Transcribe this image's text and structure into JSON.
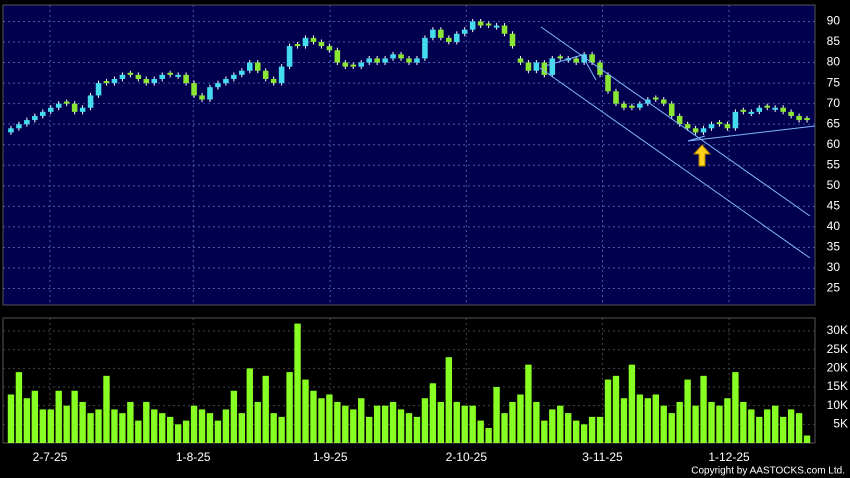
{
  "chart_data": {
    "type": "candlestick",
    "up_color": "#44dcee",
    "down_color": "#8ae632",
    "volume_color": "#88ff22",
    "grid": true,
    "xlim": [
      -1,
      101
    ],
    "xticks": [
      {
        "value": 4.9,
        "label": "2-7-25"
      },
      {
        "value": 22.9,
        "label": "1-8-25"
      },
      {
        "value": 40.1,
        "label": "1-9-25"
      },
      {
        "value": 57.2,
        "label": "2-10-25"
      },
      {
        "value": 74.3,
        "label": "3-11-25"
      },
      {
        "value": 90.2,
        "label": "1-12-25"
      }
    ],
    "ylim": [
      21,
      94
    ],
    "yticks": [
      25,
      30,
      35,
      40,
      45,
      50,
      55,
      60,
      65,
      70,
      75,
      80,
      85,
      90
    ],
    "y2lim": [
      0,
      33500
    ],
    "y2ticks": [
      {
        "value": 5000,
        "label": "5K"
      },
      {
        "value": 10000,
        "label": "10K"
      },
      {
        "value": 15000,
        "label": "15K"
      },
      {
        "value": 20000,
        "label": "20K"
      },
      {
        "value": 25000,
        "label": "25K"
      },
      {
        "value": 30000,
        "label": "30K"
      }
    ],
    "ohlc": [
      [
        63,
        64.6,
        62.4,
        64
      ],
      [
        64,
        65.6,
        63.4,
        65
      ],
      [
        65,
        66.6,
        64.4,
        66
      ],
      [
        66,
        67.6,
        65.4,
        67
      ],
      [
        67,
        68.6,
        66.4,
        68
      ],
      [
        68,
        69.6,
        67.4,
        69
      ],
      [
        69,
        70.6,
        68.4,
        70
      ],
      [
        70.5,
        71,
        69.4,
        70
      ],
      [
        70,
        70.6,
        67.4,
        68
      ],
      [
        68,
        69.6,
        67.4,
        69
      ],
      [
        69,
        72.6,
        68.4,
        72
      ],
      [
        72,
        75.6,
        71.4,
        75
      ],
      [
        75.5,
        76,
        74.4,
        75
      ],
      [
        75,
        76.6,
        74.4,
        76
      ],
      [
        76,
        77.6,
        75.4,
        77
      ],
      [
        77.5,
        78,
        76.4,
        77
      ],
      [
        77,
        77.6,
        75.4,
        76
      ],
      [
        76,
        76.6,
        74.4,
        75
      ],
      [
        75,
        76.6,
        74.4,
        76
      ],
      [
        76,
        77.6,
        75.4,
        77
      ],
      [
        77.5,
        78,
        76.4,
        77
      ],
      [
        76.5,
        77.6,
        76,
        77
      ],
      [
        77,
        77.6,
        74.4,
        75
      ],
      [
        75,
        75.6,
        71.4,
        72
      ],
      [
        72,
        72.6,
        70.4,
        71
      ],
      [
        71,
        74.6,
        70.4,
        74
      ],
      [
        74,
        75.6,
        73.4,
        75
      ],
      [
        75,
        76.6,
        74.4,
        76
      ],
      [
        76,
        77.6,
        75.4,
        77
      ],
      [
        77,
        78.6,
        76.4,
        78
      ],
      [
        78,
        80.6,
        77.4,
        80
      ],
      [
        80,
        80.6,
        77.4,
        78
      ],
      [
        78,
        78.6,
        75.4,
        76
      ],
      [
        76,
        76.6,
        74.4,
        75
      ],
      [
        75,
        79.6,
        74.4,
        79
      ],
      [
        79,
        84.6,
        78.4,
        84
      ],
      [
        84.5,
        85,
        83.4,
        84
      ],
      [
        84,
        86.6,
        83.4,
        86
      ],
      [
        86,
        86.6,
        84.4,
        85
      ],
      [
        85,
        85.6,
        83.4,
        84
      ],
      [
        84,
        84.6,
        82.4,
        83
      ],
      [
        83,
        83.6,
        79.4,
        80
      ],
      [
        80,
        80.6,
        78.4,
        79
      ],
      [
        79.5,
        80,
        78.4,
        79
      ],
      [
        79,
        80.6,
        78.4,
        80
      ],
      [
        80,
        81.6,
        79.4,
        81
      ],
      [
        81,
        81.6,
        79.4,
        80
      ],
      [
        80,
        81.6,
        79.4,
        81
      ],
      [
        81,
        82.6,
        80.4,
        82
      ],
      [
        82,
        82.6,
        80.4,
        81
      ],
      [
        81,
        81.6,
        79.4,
        80
      ],
      [
        80,
        81.6,
        79.4,
        81
      ],
      [
        81,
        86.6,
        80.4,
        86
      ],
      [
        86,
        88.6,
        85.4,
        88
      ],
      [
        88,
        88.6,
        85.4,
        86
      ],
      [
        86,
        86.6,
        84.4,
        85
      ],
      [
        85,
        87.6,
        84.4,
        87
      ],
      [
        87,
        88.6,
        86.4,
        88
      ],
      [
        88,
        90.6,
        87.4,
        90
      ],
      [
        90,
        90.6,
        88.4,
        89
      ],
      [
        89.5,
        90,
        88.4,
        89
      ],
      [
        88.5,
        89.6,
        88,
        89
      ],
      [
        89,
        89.6,
        86.4,
        87
      ],
      [
        87,
        87.6,
        83.4,
        84
      ],
      [
        81,
        81.6,
        79.4,
        80
      ],
      [
        80,
        80.6,
        77.4,
        78
      ],
      [
        78,
        80.6,
        77.4,
        80
      ],
      [
        80,
        80.6,
        76.4,
        77
      ],
      [
        77,
        81.6,
        76.4,
        81
      ],
      [
        81.5,
        82,
        80.4,
        81
      ],
      [
        80.5,
        81.6,
        80,
        81
      ],
      [
        81,
        81.6,
        79.4,
        80
      ],
      [
        80,
        82.6,
        79.4,
        82
      ],
      [
        82,
        82.6,
        79.4,
        80
      ],
      [
        80,
        80.6,
        76.4,
        77
      ],
      [
        77,
        77.6,
        72.4,
        73
      ],
      [
        73,
        73.6,
        69.4,
        70
      ],
      [
        70,
        70.6,
        68.4,
        69
      ],
      [
        69.5,
        70,
        68.4,
        69
      ],
      [
        69,
        70.6,
        68.4,
        70
      ],
      [
        70,
        71.6,
        69.4,
        71
      ],
      [
        71.5,
        72,
        70.4,
        71
      ],
      [
        71,
        71.6,
        69.4,
        70
      ],
      [
        70,
        70.6,
        66.4,
        67
      ],
      [
        67,
        67.6,
        64.4,
        65
      ],
      [
        65,
        65.6,
        63.4,
        64
      ],
      [
        64,
        64.6,
        62.4,
        63
      ],
      [
        63,
        64.6,
        62.4,
        64
      ],
      [
        64,
        65.6,
        63.4,
        65
      ],
      [
        65.5,
        66,
        64.4,
        65
      ],
      [
        65,
        65.6,
        63.4,
        64
      ],
      [
        64,
        68.6,
        63.4,
        68
      ],
      [
        68.5,
        69,
        67.4,
        68
      ],
      [
        67.5,
        68.6,
        67,
        68
      ],
      [
        68,
        69.6,
        67.4,
        69
      ],
      [
        69.5,
        70,
        68.4,
        69
      ],
      [
        68.5,
        69.6,
        68,
        69
      ],
      [
        69,
        69.6,
        67.4,
        68
      ],
      [
        68,
        68.6,
        66.4,
        67
      ],
      [
        67,
        67.6,
        65.4,
        66
      ],
      [
        66.5,
        67,
        65.4,
        66
      ]
    ],
    "volume": [
      13000,
      19000,
      12000,
      14000,
      9000,
      9000,
      14000,
      10000,
      14000,
      11000,
      8000,
      9000,
      18000,
      9000,
      8000,
      11000,
      6000,
      11000,
      9000,
      8000,
      7000,
      5000,
      6000,
      10000,
      9000,
      8000,
      6000,
      9000,
      14000,
      8000,
      20000,
      11000,
      18000,
      8000,
      7000,
      19000,
      32000,
      17000,
      14000,
      12000,
      13000,
      11000,
      10000,
      9000,
      12000,
      7000,
      10000,
      10000,
      11000,
      9000,
      8000,
      7000,
      12000,
      16000,
      11000,
      23000,
      11000,
      10000,
      10000,
      6000,
      4000,
      15000,
      8000,
      11000,
      13000,
      21000,
      11000,
      6000,
      9000,
      10000,
      8000,
      6000,
      5000,
      7000,
      7000,
      17000,
      18000,
      12000,
      21000,
      13000,
      12000,
      13000,
      10000,
      8000,
      11000,
      17000,
      10000,
      18000,
      11000,
      10000,
      12000,
      19000,
      11000,
      9000,
      7000,
      9000,
      10000,
      7000,
      9000,
      8000,
      2000
    ],
    "copyright": "Copyright by AASTOCKS.com Ltd."
  }
}
